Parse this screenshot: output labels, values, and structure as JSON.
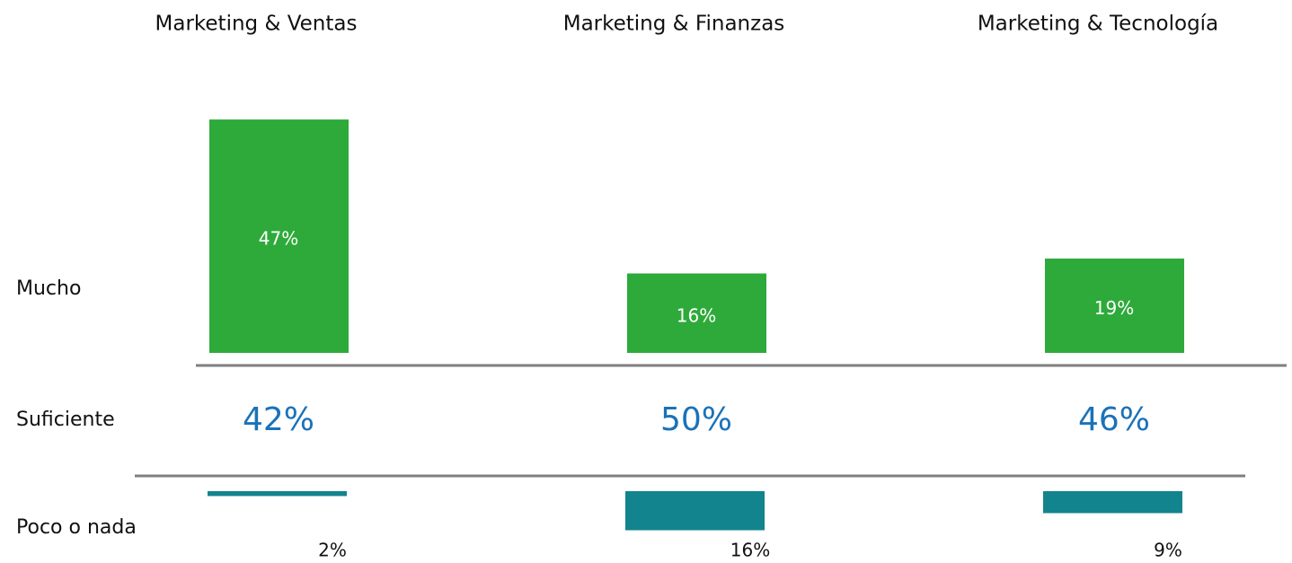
{
  "chart_data": {
    "type": "diverging-bar",
    "categories": [
      "Marketing & Ventas",
      "Marketing & Finanzas",
      "Marketing & Tecnología"
    ],
    "series": [
      {
        "name": "Mucho",
        "color": "#2eaa3a",
        "values": [
          47,
          16,
          19
        ],
        "value_labels": [
          "47%",
          "16%",
          "19%"
        ]
      },
      {
        "name": "Suficiente",
        "color": "#1a72b9",
        "values": [
          42,
          50,
          46
        ],
        "value_labels": [
          "42%",
          "50%",
          "46%"
        ]
      },
      {
        "name": "Poco o nada",
        "color": "#12848e",
        "values": [
          2,
          16,
          9
        ],
        "value_labels": [
          "2%",
          "16%",
          "9%"
        ]
      }
    ]
  }
}
